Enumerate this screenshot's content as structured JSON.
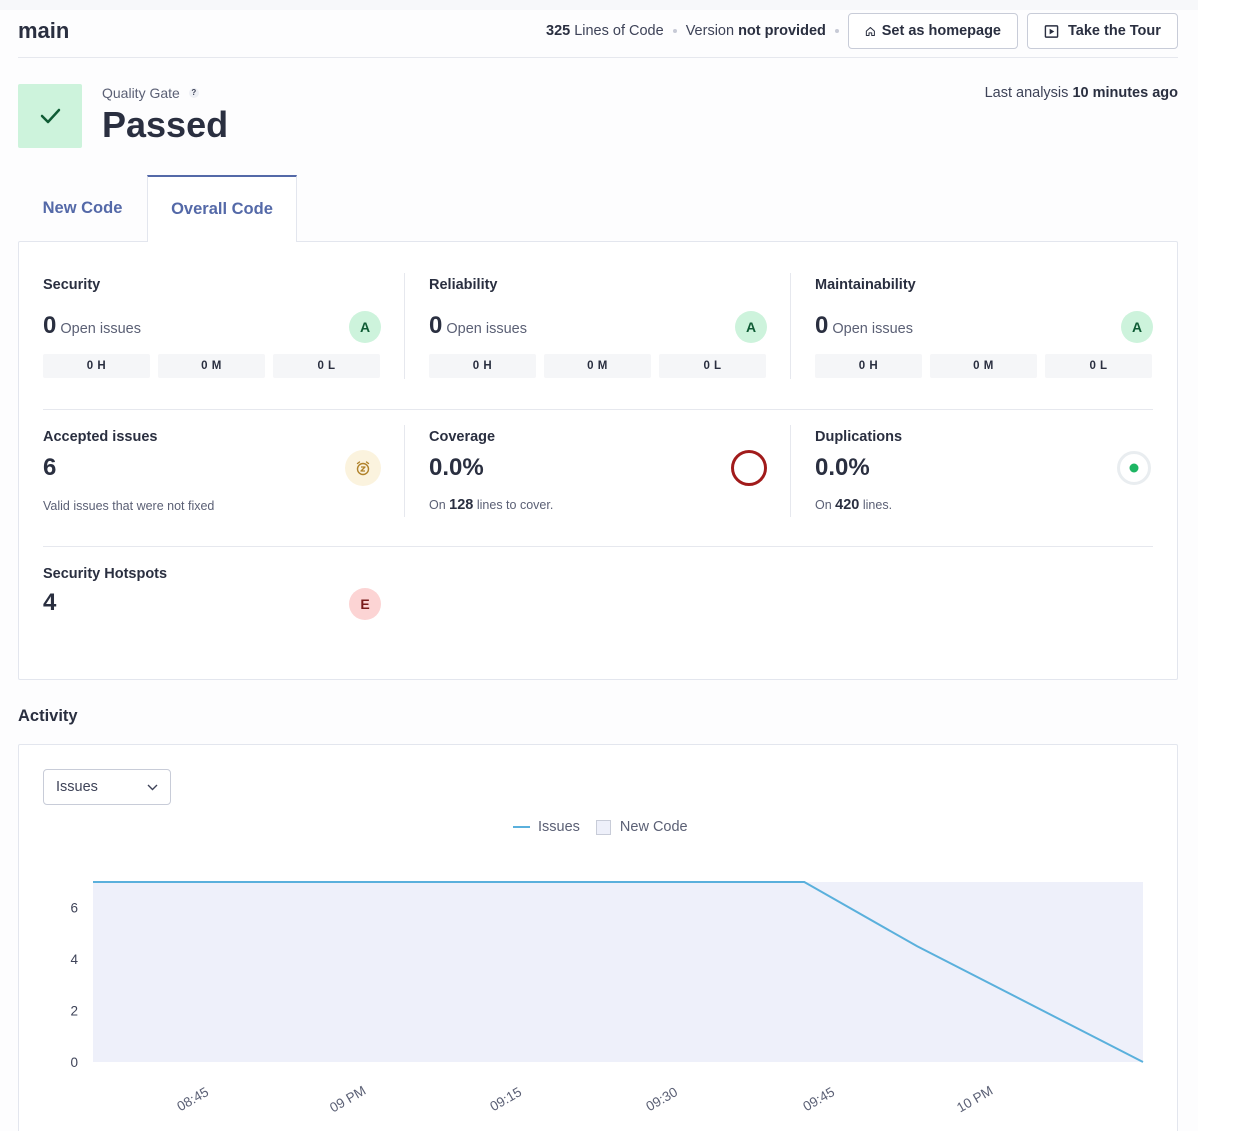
{
  "header": {
    "branch": "main",
    "lines_of_code_value": "325",
    "lines_of_code_label": "Lines of Code",
    "version_label": "Version",
    "version_value": "not provided",
    "set_homepage_label": "Set as homepage",
    "take_tour_label": "Take the Tour"
  },
  "quality_gate": {
    "label": "Quality Gate",
    "help": "?",
    "status": "Passed",
    "last_analysis_label": "Last analysis",
    "last_analysis_value": "10 minutes ago",
    "status_color": "#cdf3dc"
  },
  "tabs": [
    {
      "label": "New Code",
      "selected": false
    },
    {
      "label": "Overall Code",
      "selected": true
    }
  ],
  "metrics": {
    "security": {
      "title": "Security",
      "value": "0",
      "sub": "Open issues",
      "rating": "A",
      "high": "0 H",
      "medium": "0 M",
      "low": "0 L"
    },
    "reliability": {
      "title": "Reliability",
      "value": "0",
      "sub": "Open issues",
      "rating": "A",
      "high": "0 H",
      "medium": "0 M",
      "low": "0 L"
    },
    "maintainability": {
      "title": "Maintainability",
      "value": "0",
      "sub": "Open issues",
      "rating": "A",
      "high": "0 H",
      "medium": "0 M",
      "low": "0 L"
    },
    "accepted": {
      "title": "Accepted issues",
      "value": "6",
      "desc": "Valid issues that were not fixed"
    },
    "coverage": {
      "title": "Coverage",
      "value": "0.0%",
      "desc_prefix": "On",
      "desc_value": "128",
      "desc_suffix": "lines to cover."
    },
    "duplications": {
      "title": "Duplications",
      "value": "0.0%",
      "desc_prefix": "On",
      "desc_value": "420",
      "desc_suffix": "lines."
    },
    "hotspots": {
      "title": "Security Hotspots",
      "value": "4",
      "rating": "E"
    }
  },
  "colors": {
    "rating_a_bg": "#cdf3dc",
    "rating_e_bg": "#fcd4d4",
    "coverage_ring": "#a11b1b",
    "duplication_dot": "#1db563",
    "line_series": "#5ab0dc",
    "new_code_area": "#eef0fa"
  },
  "activity": {
    "title": "Activity",
    "select_value": "Issues",
    "legend_issues": "Issues",
    "legend_new_code": "New Code"
  },
  "chart_data": {
    "type": "line",
    "series": [
      {
        "name": "Issues",
        "x": [
          "08:37",
          "09:40",
          "09:50",
          "10:10"
        ],
        "y": [
          7,
          7,
          4.5,
          0
        ]
      }
    ],
    "new_code_period": [
      "08:37",
      "10:10"
    ],
    "x_ticks": [
      "08:45",
      "09 PM",
      "09:15",
      "09:30",
      "09:45",
      "10 PM"
    ],
    "y_ticks": [
      "0",
      "2",
      "4",
      "6"
    ],
    "ylim": [
      0,
      7
    ]
  }
}
